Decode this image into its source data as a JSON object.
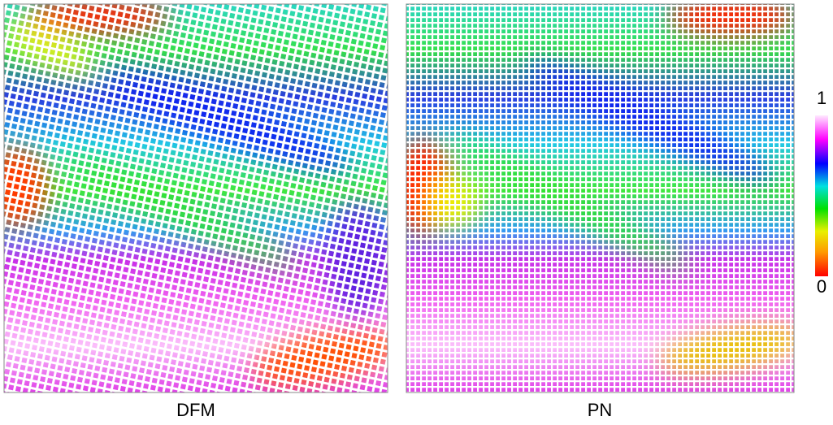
{
  "panels": [
    {
      "label": "DFM"
    },
    {
      "label": "PN"
    }
  ],
  "colorbar": {
    "range": [
      0,
      1
    ],
    "ticks": [
      0,
      1
    ]
  }
}
